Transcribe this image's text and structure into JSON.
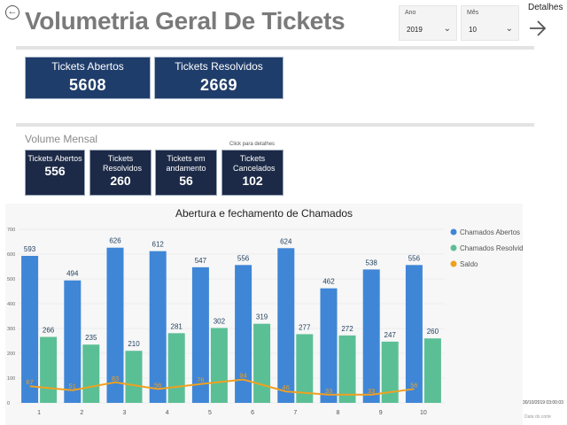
{
  "header": {
    "back_icon": "circle-arrow-left-icon",
    "title": "Volumetria Geral De Tickets",
    "details_label": "Detalhes",
    "details_icon": "arrow-right-icon"
  },
  "filters": {
    "year": {
      "label": "Ano",
      "value": "2019"
    },
    "month": {
      "label": "Mês",
      "value": "10"
    }
  },
  "totals": {
    "open": {
      "label": "Tickets Abertos",
      "value": "5608"
    },
    "resolved": {
      "label": "Tickets Resolvidos",
      "value": "2669"
    }
  },
  "monthly": {
    "title": "Volume Mensal",
    "hint": "Click para detalhes",
    "cards": [
      {
        "label": "Tickets Abertos",
        "value": "556"
      },
      {
        "label": "Tickets Resolvidos",
        "value": "260"
      },
      {
        "label": "Tickets em andamento",
        "value": "56"
      },
      {
        "label": "Tickets Cancelados",
        "value": "102"
      }
    ]
  },
  "footer": {
    "date_value": "30/10/2019 03:00:03",
    "date_label": "Data do corte"
  },
  "colors": {
    "open": "#3f86d6",
    "resolved": "#5bbf96",
    "balance": "#f0a020",
    "card_dark": "#1f3d6b"
  },
  "chart_data": {
    "type": "bar",
    "title": "Abertura e fechamento de Chamados",
    "categories": [
      "1",
      "2",
      "3",
      "4",
      "5",
      "6",
      "7",
      "8",
      "9",
      "10"
    ],
    "series": [
      {
        "name": "Chamados Abertos",
        "type": "bar",
        "values": [
          593,
          494,
          626,
          612,
          547,
          556,
          624,
          462,
          538,
          556
        ]
      },
      {
        "name": "Chamados Resolvidos",
        "type": "bar",
        "values": [
          266,
          235,
          210,
          281,
          302,
          319,
          277,
          272,
          247,
          260
        ]
      },
      {
        "name": "Saldo",
        "type": "line",
        "values": [
          67,
          51,
          83,
          56,
          76,
          94,
          46,
          33,
          33,
          56
        ]
      }
    ],
    "yticks": [
      0,
      100,
      200,
      300,
      400,
      500,
      600,
      700
    ],
    "ylim": [
      0,
      700
    ],
    "grid": true,
    "legend_position": "right"
  }
}
